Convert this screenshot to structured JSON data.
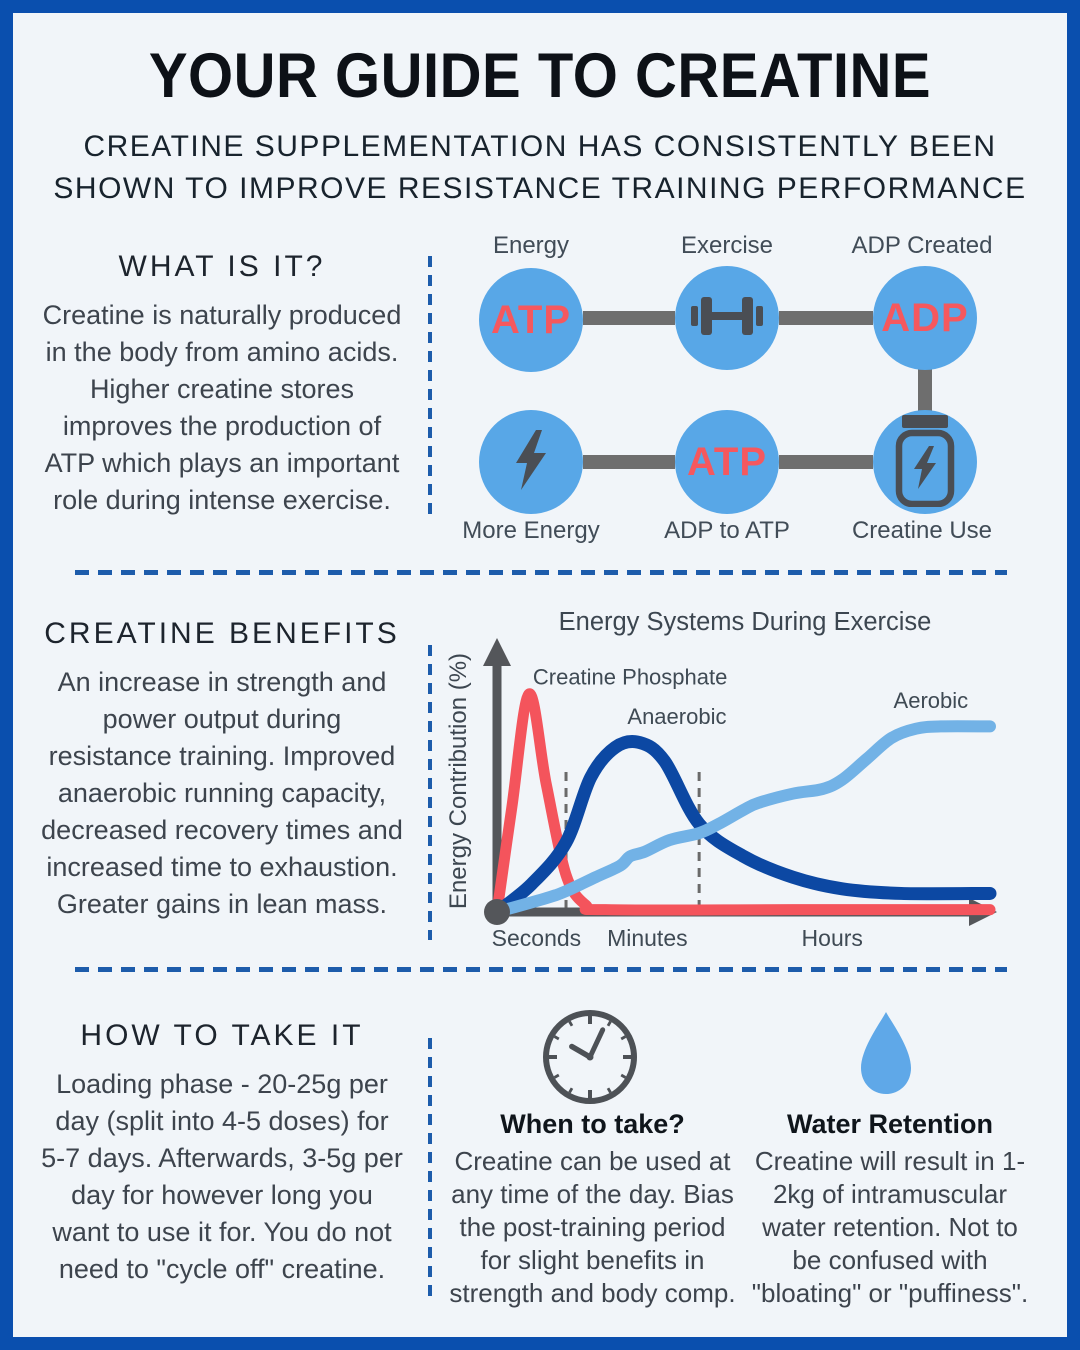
{
  "page": {
    "title": "YOUR GUIDE TO CREATINE",
    "subtitle": "CREATINE SUPPLEMENTATION HAS CONSISTENTLY BEEN\nSHOWN TO IMPROVE RESISTANCE TRAINING PERFORMANCE"
  },
  "colors": {
    "border_blue": "#0a4fae",
    "background": "#f1f5f9",
    "circle_blue": "#58a7e7",
    "atp_red": "#f5585e",
    "dashed_divider_blue": "#1d5cab",
    "connector_gray": "#6e6e6e",
    "icon_gray": "#4a4e54",
    "curve_red": "#f4545c",
    "curve_dark_blue": "#0c48a3",
    "curve_light_blue": "#72b2e6"
  },
  "what_is_it": {
    "heading": "WHAT IS IT?",
    "body": "Creatine is naturally produced\nin the body from amino acids.\nHigher creatine stores\nimproves the production of\nATP which plays an important\nrole during intense exercise."
  },
  "atp_diagram": {
    "top": [
      {
        "label": "Energy",
        "circle_text": "ATP"
      },
      {
        "label": "Exercise",
        "icon": "dumbbell-icon"
      },
      {
        "label": "ADP Created",
        "circle_text": "ADP"
      }
    ],
    "bottom": [
      {
        "label": "More Energy",
        "icon": "bolt-icon"
      },
      {
        "label": "ADP to ATP",
        "circle_text": "ATP"
      },
      {
        "label": "Creatine Use",
        "icon": "supplement-jar-icon"
      }
    ]
  },
  "benefits": {
    "heading": "CREATINE BENEFITS",
    "body": "An increase in strength and\npower output during\nresistance training. Improved\nanaerobic running capacity,\ndecreased recovery times and\nincreased time to exhaustion.\nGreater gains in lean mass."
  },
  "chart_data": {
    "type": "line",
    "title": "Energy Systems During Exercise",
    "ylabel": "Energy Contribution (%)",
    "xlabel": "",
    "xlim": [
      0,
      100
    ],
    "ylim": [
      0,
      100
    ],
    "grid": "two dashed vertical region separators",
    "legend": "inline labels above curves",
    "gridlines_x": [
      14,
      41
    ],
    "xlabel_regions": [
      {
        "label": "Seconds",
        "center": 8
      },
      {
        "label": "Minutes",
        "center": 30.5
      },
      {
        "label": "Hours",
        "center": 68
      }
    ],
    "series": [
      {
        "name": "Creatine Phosphate",
        "color": "#f4545c",
        "width": 11,
        "label_pos": [
          27,
          98
        ],
        "points": [
          [
            0,
            0
          ],
          [
            3,
            45
          ],
          [
            6.5,
            94
          ],
          [
            10,
            55
          ],
          [
            14,
            16
          ],
          [
            18,
            3
          ],
          [
            22,
            1
          ],
          [
            60,
            1
          ],
          [
            100,
            1
          ]
        ]
      },
      {
        "name": "Anaerobic",
        "color": "#0c48a3",
        "width": 13,
        "label_pos": [
          36.5,
          81
        ],
        "points": [
          [
            0,
            0
          ],
          [
            7,
            12
          ],
          [
            14,
            30
          ],
          [
            19,
            58
          ],
          [
            24,
            71
          ],
          [
            29,
            73
          ],
          [
            34,
            65
          ],
          [
            41,
            38
          ],
          [
            50,
            24
          ],
          [
            60,
            15
          ],
          [
            70,
            10
          ],
          [
            82,
            8
          ],
          [
            100,
            8
          ]
        ]
      },
      {
        "name": "Aerobic",
        "color": "#72b2e6",
        "width": 12,
        "label_pos": [
          88,
          88
        ],
        "points": [
          [
            0,
            0
          ],
          [
            10,
            6
          ],
          [
            14,
            9
          ],
          [
            20,
            15
          ],
          [
            25,
            20
          ],
          [
            27,
            24
          ],
          [
            30,
            26
          ],
          [
            35,
            31
          ],
          [
            41,
            34
          ],
          [
            45,
            38
          ],
          [
            50,
            44
          ],
          [
            53,
            47
          ],
          [
            60,
            51
          ],
          [
            66,
            53
          ],
          [
            70,
            57
          ],
          [
            75,
            66
          ],
          [
            80,
            75
          ],
          [
            85,
            79
          ],
          [
            90,
            80
          ],
          [
            100,
            80
          ]
        ]
      }
    ]
  },
  "how_to": {
    "heading": "HOW TO TAKE IT",
    "body": "Loading phase - 20-25g per\nday (split into 4-5 doses) for\n5-7 days. Afterwards, 3-5g per\nday for however long you\nwant to use it for. You do not\nneed to \"cycle off\" creatine."
  },
  "when_to_take": {
    "heading": "When to take?",
    "body": "Creatine can be used at\nany time of the day. Bias\nthe post-training period\nfor slight benefits in\nstrength and body comp."
  },
  "water_retention": {
    "heading": "Water Retention",
    "body": "Creatine will result in 1-\n2kg of intramuscular\nwater retention. Not to\nbe confused with\n\"bloating\" or \"puffiness\"."
  }
}
